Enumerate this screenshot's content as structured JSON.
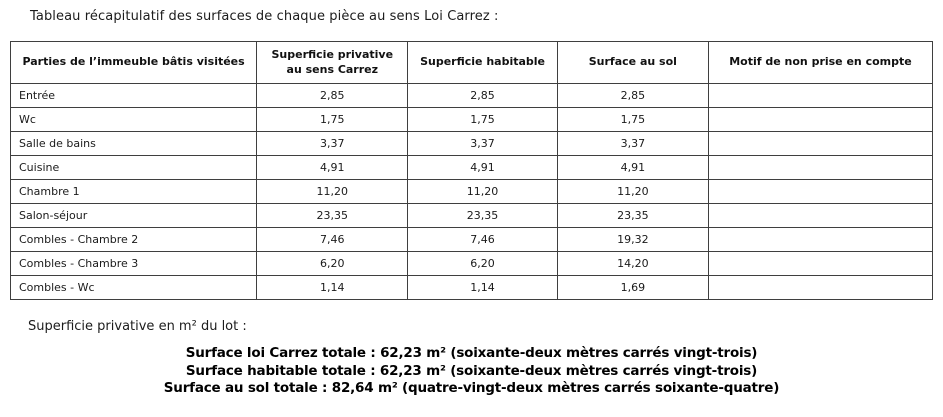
{
  "title": "Tableau récapitulatif des surfaces de chaque pièce au sens Loi Carrez :",
  "table": {
    "headers": [
      "Parties de l’immeuble bâtis visitées",
      "Superficie privative au sens Carrez",
      "Superficie habitable",
      "Surface au sol",
      "Motif de non prise en compte"
    ],
    "rows": [
      {
        "piece": "Entrée",
        "carrez": "2,85",
        "habitable": "2,85",
        "sol": "2,85",
        "motif": ""
      },
      {
        "piece": "Wc",
        "carrez": "1,75",
        "habitable": "1,75",
        "sol": "1,75",
        "motif": ""
      },
      {
        "piece": "Salle de bains",
        "carrez": "3,37",
        "habitable": "3,37",
        "sol": "3,37",
        "motif": ""
      },
      {
        "piece": "Cuisine",
        "carrez": "4,91",
        "habitable": "4,91",
        "sol": "4,91",
        "motif": ""
      },
      {
        "piece": "Chambre 1",
        "carrez": "11,20",
        "habitable": "11,20",
        "sol": "11,20",
        "motif": ""
      },
      {
        "piece": "Salon-séjour",
        "carrez": "23,35",
        "habitable": "23,35",
        "sol": "23,35",
        "motif": ""
      },
      {
        "piece": "Combles - Chambre 2",
        "carrez": "7,46",
        "habitable": "7,46",
        "sol": "19,32",
        "motif": ""
      },
      {
        "piece": "Combles - Chambre 3",
        "carrez": "6,20",
        "habitable": "6,20",
        "sol": "14,20",
        "motif": ""
      },
      {
        "piece": "Combles - Wc",
        "carrez": "1,14",
        "habitable": "1,14",
        "sol": "1,69",
        "motif": ""
      }
    ]
  },
  "footer": {
    "lot_label": "Superficie privative en m² du lot :",
    "totals": [
      "Surface loi Carrez totale : 62,23 m² (soixante-deux mètres carrés vingt-trois)",
      "Surface habitable totale : 62,23 m² (soixante-deux mètres carrés vingt-trois)",
      "Surface au sol totale : 82,64 m² (quatre-vingt-deux mètres carrés soixante-quatre)"
    ]
  }
}
